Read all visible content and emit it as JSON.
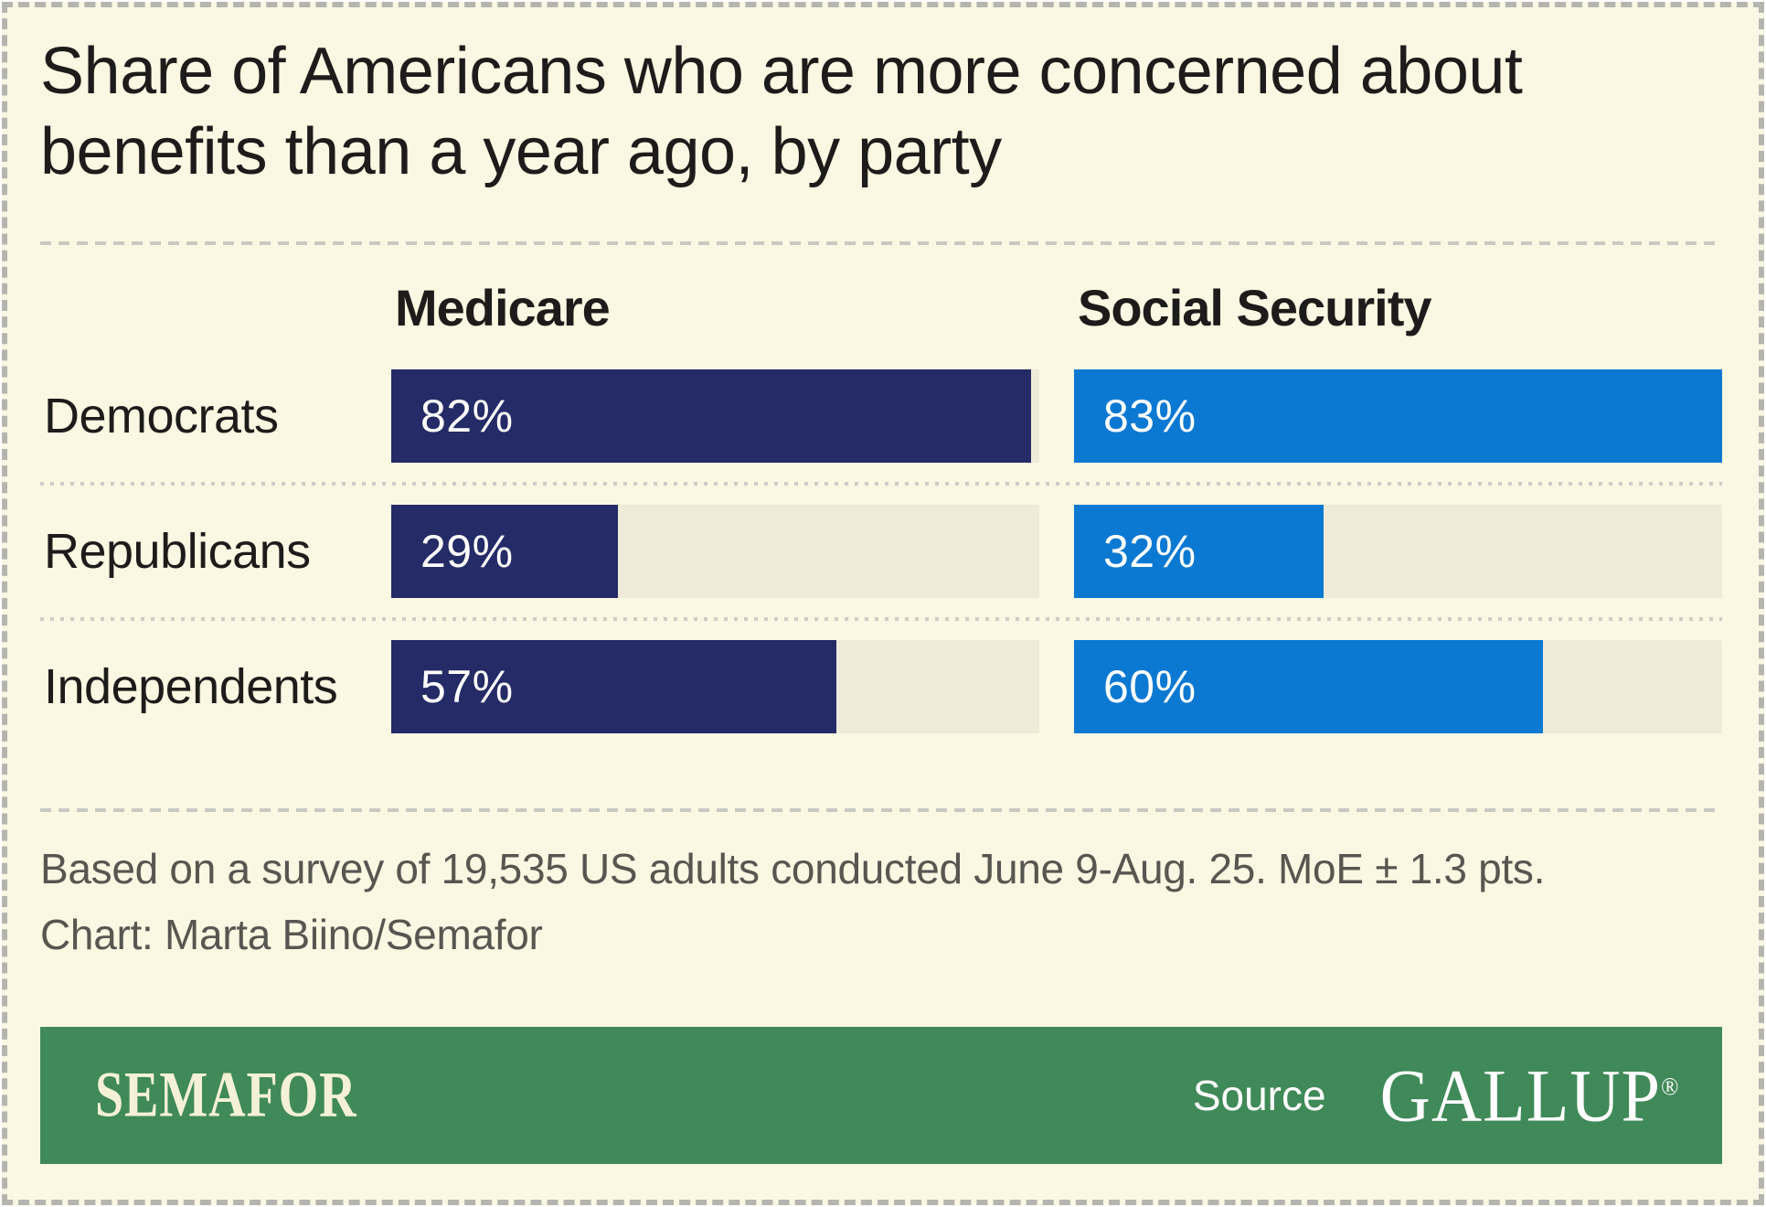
{
  "title": "Share of Americans who are more concerned about benefits than a year ago, by party",
  "chart_data": {
    "type": "bar",
    "orientation": "horizontal",
    "categories": [
      "Democrats",
      "Republicans",
      "Independents"
    ],
    "series": [
      {
        "name": "Medicare",
        "values": [
          82,
          29,
          57
        ],
        "color": "#242b66"
      },
      {
        "name": "Social Security",
        "values": [
          83,
          32,
          60
        ],
        "color": "#0b79d2"
      }
    ],
    "value_suffix": "%",
    "value_labels_position": "inside-left",
    "scale_max": 83,
    "track_color": "#eeebd8",
    "grid": false,
    "legend_position": "column-headers"
  },
  "footer": {
    "survey_note": "Based on a survey of 19,535 US adults conducted June 9-Aug. 25. MoE ± 1.3 pts.",
    "credit": "Chart: Marta Biino/Semafor"
  },
  "brand": {
    "wordmark": "SEMAFOR",
    "source_label": "Source",
    "source_name": "GALLUP",
    "registered_mark": "®",
    "bar_color": "#3f8a58"
  },
  "colors": {
    "background": "#faf7e2",
    "text": "#1d1c1a",
    "footnote_text": "#57564f",
    "divider": "#c9c9c1",
    "outer_border": "#b5b5af"
  }
}
